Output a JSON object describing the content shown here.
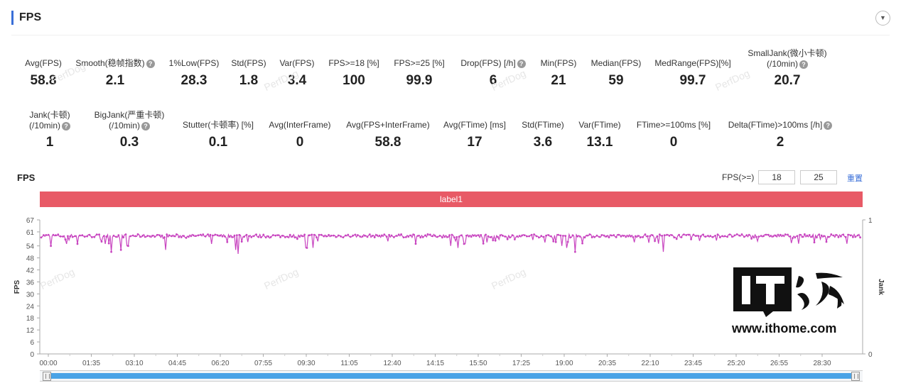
{
  "header": {
    "title": "FPS",
    "collapse_icon": "chevron-down-icon"
  },
  "metrics_row1": [
    {
      "label": "Avg(FPS)",
      "value": "58.8",
      "help": false
    },
    {
      "label": "Smooth(稳帧指数)",
      "value": "2.1",
      "help": true
    },
    {
      "label": "1%Low(FPS)",
      "value": "28.3",
      "help": false
    },
    {
      "label": "Std(FPS)",
      "value": "1.8",
      "help": false
    },
    {
      "label": "Var(FPS)",
      "value": "3.4",
      "help": false
    },
    {
      "label": "FPS>=18 [%]",
      "value": "100",
      "help": false
    },
    {
      "label": "FPS>=25 [%]",
      "value": "99.9",
      "help": false
    },
    {
      "label": "Drop(FPS) [/h]",
      "value": "6",
      "help": true
    },
    {
      "label": "Min(FPS)",
      "value": "21",
      "help": false
    },
    {
      "label": "Median(FPS)",
      "value": "59",
      "help": false
    },
    {
      "label": "MedRange(FPS)[%]",
      "value": "99.7",
      "help": false
    },
    {
      "label": "SmallJank(微小卡顿)",
      "label2": "(/10min)",
      "value": "20.7",
      "help": true
    }
  ],
  "metrics_row2": [
    {
      "label": "Jank(卡顿)",
      "label2": "(/10min)",
      "value": "1",
      "help": true
    },
    {
      "label": "BigJank(严重卡顿)",
      "label2": "(/10min)",
      "value": "0.3",
      "help": true
    },
    {
      "label": "Stutter(卡顿率) [%]",
      "value": "0.1",
      "help": false
    },
    {
      "label": "Avg(InterFrame)",
      "value": "0",
      "help": false
    },
    {
      "label": "Avg(FPS+InterFrame)",
      "value": "58.8",
      "help": false
    },
    {
      "label": "Avg(FTime) [ms]",
      "value": "17",
      "help": false
    },
    {
      "label": "Std(FTime)",
      "value": "3.6",
      "help": false
    },
    {
      "label": "Var(FTime)",
      "value": "13.1",
      "help": false
    },
    {
      "label": "FTime>=100ms [%]",
      "value": "0",
      "help": false
    },
    {
      "label": "Delta(FTime)>100ms [/h]",
      "value": "2",
      "help": true
    }
  ],
  "chart_panel": {
    "title": "FPS",
    "threshold_label": "FPS(>=)",
    "threshold_1": "18",
    "threshold_2": "25",
    "reset_label": "重置",
    "band_label": "label1"
  },
  "watermark_text": "PerfDog",
  "brand": {
    "logo_text": "IT之家",
    "url": "www.ithome.com"
  },
  "chart_data": {
    "type": "line",
    "xlabel": "",
    "ylabel": "FPS",
    "y2label": "Jank",
    "ylim": [
      0,
      67
    ],
    "y_ticks": [
      "0",
      "6",
      "12",
      "18",
      "24",
      "30",
      "36",
      "42",
      "48",
      "54",
      "61",
      "67"
    ],
    "y2_ticks": [
      "0",
      "1"
    ],
    "x_ticks": [
      "00:00",
      "01:35",
      "03:10",
      "04:45",
      "06:20",
      "07:55",
      "09:30",
      "11:05",
      "12:40",
      "14:15",
      "15:50",
      "17:25",
      "19:00",
      "20:35",
      "22:10",
      "23:45",
      "25:20",
      "26:55",
      "28:30"
    ],
    "series": [
      {
        "color": "#c845c0",
        "baseline": 59,
        "dips": [
          {
            "t": "00:05",
            "v": 54
          },
          {
            "t": "00:40",
            "v": 55
          },
          {
            "t": "01:05",
            "v": 55
          },
          {
            "t": "02:05",
            "v": 55
          },
          {
            "t": "02:20",
            "v": 51
          },
          {
            "t": "02:40",
            "v": 52
          },
          {
            "t": "02:55",
            "v": 54
          },
          {
            "t": "04:20",
            "v": 52
          },
          {
            "t": "06:00",
            "v": 55
          },
          {
            "t": "06:55",
            "v": 52
          },
          {
            "t": "07:00",
            "v": 50
          },
          {
            "t": "09:30",
            "v": 53
          },
          {
            "t": "09:45",
            "v": 53
          },
          {
            "t": "14:50",
            "v": 54
          },
          {
            "t": "15:05",
            "v": 53
          },
          {
            "t": "15:20",
            "v": 55
          },
          {
            "t": "18:55",
            "v": 54
          },
          {
            "t": "19:05",
            "v": 53
          },
          {
            "t": "19:25",
            "v": 51
          },
          {
            "t": "22:40",
            "v": 51
          },
          {
            "t": "28:40",
            "v": 56
          }
        ]
      }
    ],
    "grid": false
  },
  "scrollbar": {
    "range_start": 0,
    "range_end": 1
  }
}
